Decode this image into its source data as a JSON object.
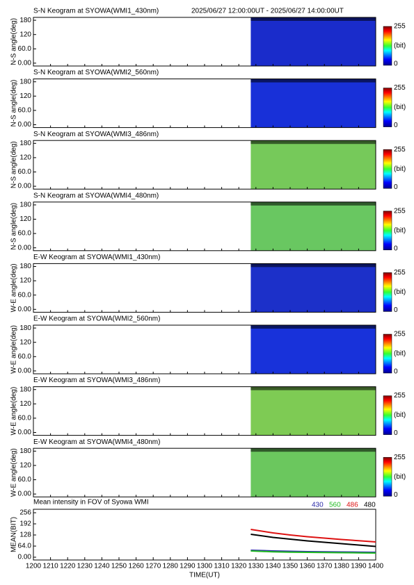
{
  "chart_data": [
    {
      "type": "keogram",
      "title": "S-N Keogram at SYOWA(WMI1_430nm)",
      "subtitle": "2025/06/27 12:00:00UT - 2025/06/27 14:00:00UT",
      "ylabel": "N-S angle(deg)",
      "ylim": [
        -12,
        192
      ],
      "yticks": [
        {
          "value": 0,
          "label": "0.00"
        },
        {
          "value": 60,
          "label": "60.0"
        },
        120,
        180
      ],
      "color": "#1c2fd8",
      "colorbar": {
        "range": [
          0,
          255
        ],
        "label": "(bit)"
      }
    },
    {
      "type": "keogram",
      "title": "S-N Keogram at SYOWA(WMI2_560nm)",
      "ylabel": "N-S angle(deg)",
      "ylim": [
        -12,
        192
      ],
      "yticks": [
        {
          "value": 0,
          "label": "0.00"
        },
        {
          "value": 60,
          "label": "60.0"
        },
        120,
        180
      ],
      "color": "#1a33e6",
      "colorbar": {
        "range": [
          0,
          255
        ],
        "label": "(bit)"
      }
    },
    {
      "type": "keogram",
      "title": "S-N Keogram at SYOWA(WMI3_486nm)",
      "ylabel": "N-S angle(deg)",
      "ylim": [
        -12,
        192
      ],
      "yticks": [
        {
          "value": 0,
          "label": "0.00"
        },
        {
          "value": 60,
          "label": "60.0"
        },
        120,
        180
      ],
      "color": "#7ed660",
      "colorbar": {
        "range": [
          0,
          255
        ],
        "label": "(bit)"
      }
    },
    {
      "type": "keogram",
      "title": "S-N Keogram at SYOWA(WMI4_480nm)",
      "ylabel": "N-S angle(deg)",
      "ylim": [
        -12,
        192
      ],
      "yticks": [
        {
          "value": 0,
          "label": "0.00"
        },
        {
          "value": 60,
          "label": "60.0"
        },
        120,
        180
      ],
      "color": "#70d468",
      "colorbar": {
        "range": [
          0,
          255
        ],
        "label": "(bit)"
      }
    },
    {
      "type": "keogram",
      "title": "E-W Keogram at SYOWA(WMI1_430nm)",
      "ylabel": "W-E angle(deg)",
      "ylim": [
        -12,
        192
      ],
      "yticks": [
        {
          "value": 0,
          "label": "0.00"
        },
        {
          "value": 60,
          "label": "60.0"
        },
        120,
        180
      ],
      "color": "#1e34d6",
      "colorbar": {
        "range": [
          0,
          255
        ],
        "label": "(bit)"
      }
    },
    {
      "type": "keogram",
      "title": "E-W Keogram at SYOWA(WMI2_560nm)",
      "ylabel": "W-E angle(deg)",
      "ylim": [
        -12,
        192
      ],
      "yticks": [
        {
          "value": 0,
          "label": "0.00"
        },
        {
          "value": 60,
          "label": "60.0"
        },
        120,
        180
      ],
      "color": "#1a36e8",
      "colorbar": {
        "range": [
          0,
          255
        ],
        "label": "(bit)"
      }
    },
    {
      "type": "keogram",
      "title": "E-W Keogram at SYOWA(WMI3_486nm)",
      "ylabel": "W-E angle(deg)",
      "ylim": [
        -12,
        192
      ],
      "yticks": [
        {
          "value": 0,
          "label": "0.00"
        },
        {
          "value": 60,
          "label": "60.0"
        },
        120,
        180
      ],
      "color": "#86d85a",
      "colorbar": {
        "range": [
          0,
          255
        ],
        "label": "(bit)"
      }
    },
    {
      "type": "keogram",
      "title": "E-W Keogram at SYOWA(WMI4_480nm)",
      "ylabel": "W-E angle(deg)",
      "ylim": [
        -12,
        192
      ],
      "yticks": [
        {
          "value": 0,
          "label": "0.00"
        },
        {
          "value": 60,
          "label": "60.0"
        },
        120,
        180
      ],
      "color": "#72d464",
      "colorbar": {
        "range": [
          0,
          255
        ],
        "label": "(bit)"
      }
    },
    {
      "type": "line",
      "title": "Mean intensity in FOV of Syowa WMI",
      "ylabel": "MEAN(BIT)",
      "xlabel": "TIME(UT)",
      "x": [
        1327,
        1340,
        1350,
        1360,
        1370,
        1380,
        1390,
        1400
      ],
      "xlim": [
        1200,
        1400
      ],
      "xticks": [
        1200,
        1210,
        1220,
        1230,
        1240,
        1250,
        1260,
        1270,
        1280,
        1290,
        1300,
        1310,
        1320,
        1330,
        1340,
        1350,
        1360,
        1370,
        1380,
        1390,
        1400
      ],
      "ylim": [
        -16,
        276
      ],
      "yticks": [
        {
          "value": 0,
          "label": "0.00"
        },
        {
          "value": 64,
          "label": "64.0"
        },
        128,
        192,
        256
      ],
      "series": [
        {
          "name": "430",
          "color": "#2a2aa8",
          "values": [
            40,
            36,
            34,
            32,
            31,
            30,
            29,
            28
          ]
        },
        {
          "name": "560",
          "color": "#22bb22",
          "values": [
            36,
            31,
            29,
            28,
            27,
            26,
            25,
            24
          ]
        },
        {
          "name": "486",
          "color": "#dd1111",
          "values": [
            160,
            140,
            128,
            118,
            110,
            102,
            95,
            88
          ]
        },
        {
          "name": "480",
          "color": "#000000",
          "values": [
            132,
            114,
            104,
            94,
            86,
            78,
            70,
            62
          ]
        }
      ]
    }
  ]
}
